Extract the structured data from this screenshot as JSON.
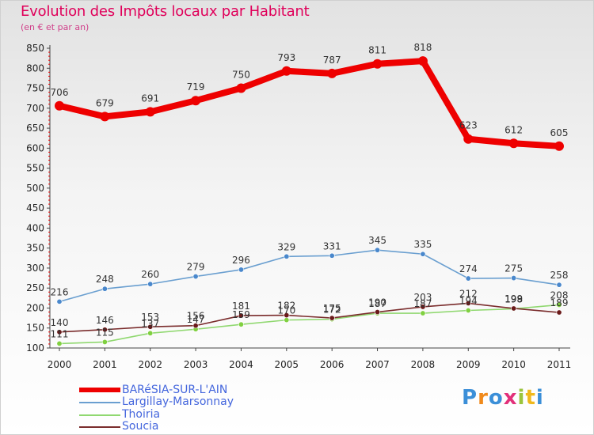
{
  "title": "Evolution des Impôts locaux par Habitant",
  "subtitle": "(en € et par an)",
  "logo": {
    "text": "Proxiti",
    "colors": [
      "#3b8fd8",
      "#f08a1c",
      "#3b8fd8",
      "#e2307a",
      "#9bc43c",
      "#f0b81c",
      "#3b8fd8"
    ]
  },
  "chart_data": {
    "type": "line",
    "title": "Evolution des Impôts locaux par Habitant",
    "subtitle": "(en € et par an)",
    "x": [
      "2000",
      "2001",
      "2002",
      "2003",
      "2004",
      "2005",
      "2006",
      "2007",
      "2008",
      "2009",
      "2010",
      "2011"
    ],
    "ylim": [
      100,
      850
    ],
    "yticks": [
      100,
      150,
      200,
      250,
      300,
      350,
      400,
      450,
      500,
      550,
      600,
      650,
      700,
      750,
      800,
      850
    ],
    "grid": false,
    "legend_position": "bottom-left",
    "series": [
      {
        "name": "BARéSIA-SUR-L'AIN",
        "color": "#ee0000",
        "marker": "#ee0000",
        "width": "thick",
        "values": [
          706,
          679,
          691,
          719,
          750,
          793,
          787,
          811,
          818,
          623,
          612,
          605
        ]
      },
      {
        "name": "Largillay-Marsonnay",
        "color": "#6a9fd0",
        "marker": "#4a88cc",
        "width": "thin",
        "values": [
          216,
          248,
          260,
          279,
          296,
          329,
          331,
          345,
          335,
          274,
          275,
          258
        ]
      },
      {
        "name": "Thoiria",
        "color": "#90d870",
        "marker": "#80d040",
        "width": "thin",
        "values": [
          111,
          115,
          137,
          147,
          159,
          170,
          172,
          187,
          187,
          194,
          198,
          208
        ]
      },
      {
        "name": "Soucia",
        "color": "#7a2c2c",
        "marker": "#6a1a1a",
        "width": "thin",
        "values": [
          140,
          146,
          153,
          156,
          181,
          182,
          175,
          190,
          203,
          212,
          199,
          189
        ]
      }
    ]
  }
}
